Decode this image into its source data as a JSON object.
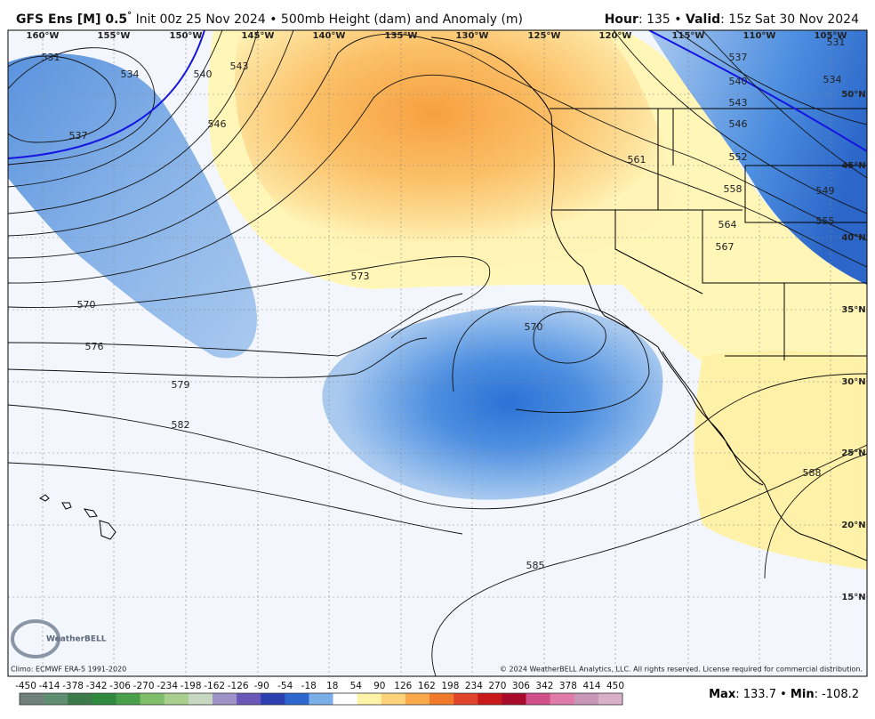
{
  "header": {
    "model": "GFS Ens [M] 0.5",
    "degree": "°",
    "init": "Init 00z 25 Nov 2024",
    "separator": "•",
    "product": "500mb Height (dam) and Anomaly (m)",
    "hour_label": "Hour",
    "hour_value": ": 135",
    "valid_label": "Valid",
    "valid_value": ": 15z Sat 30 Nov 2024"
  },
  "map": {
    "longitude_labels": [
      "160°W",
      "155°W",
      "150°W",
      "145°W",
      "140°W",
      "135°W",
      "130°W",
      "125°W",
      "120°W",
      "115°W",
      "110°W",
      "105°W"
    ],
    "latitude_labels": [
      "50°N",
      "45°N",
      "40°N",
      "35°N",
      "30°N",
      "25°N",
      "20°N",
      "15°N"
    ],
    "contour_labels": [
      "531",
      "534",
      "537",
      "540",
      "543",
      "546",
      "573",
      "570",
      "576",
      "579",
      "582",
      "570",
      "585",
      "588",
      "561",
      "558",
      "564",
      "567",
      "552",
      "546",
      "543",
      "540",
      "537",
      "534",
      "549",
      "555",
      "531"
    ],
    "logo": "WeatherBELL"
  },
  "footer": {
    "climo": "Climo: ECMWF ERA-5 1991-2020",
    "copyright": "© 2024 WeatherBELL Analytics, LLC. All rights reserved. License required for commercial distribution.",
    "max_label": "Max",
    "max_value": ": 133.7",
    "min_label": "Min",
    "min_value": ": -108.2"
  },
  "colorbar": {
    "labels": [
      "-450",
      "-414",
      "-378",
      "-342",
      "-306",
      "-270",
      "-234",
      "-198",
      "-162",
      "-126",
      "-90",
      "-54",
      "-18",
      "18",
      "54",
      "90",
      "126",
      "162",
      "198",
      "234",
      "270",
      "306",
      "342",
      "378",
      "414",
      "450"
    ],
    "colors": [
      "#6f7f7a",
      "#5f8f70",
      "#3c7a4a",
      "#2f8a3f",
      "#4aa04a",
      "#7fbf6a",
      "#a9cf8e",
      "#c7d8c0",
      "#9d93c8",
      "#6a58b8",
      "#2b3fb0",
      "#2c67d0",
      "#79aee8",
      "#ffffff",
      "#fff3a8",
      "#fdd27a",
      "#f9a94a",
      "#f07a2a",
      "#e0442a",
      "#c81a1a",
      "#a80a2a",
      "#d0508a",
      "#e07aa8",
      "#c897b8",
      "#d8b0c8"
    ]
  }
}
